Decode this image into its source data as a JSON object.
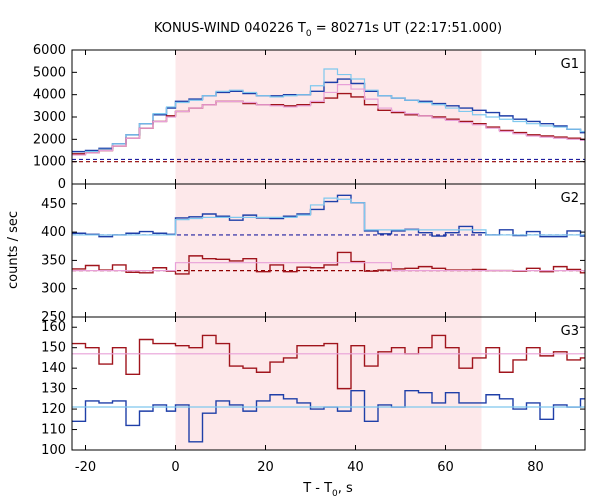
{
  "title_main": "KONUS-WIND 040226 T",
  "title_sub": "0",
  "title_tail": " = 80271s UT (22:17:51.000)",
  "xlabel_main": "T - T",
  "xlabel_sub": "0",
  "xlabel_tail": ", s",
  "ylabel": "counts / sec",
  "colors": {
    "shade": "#fde8ea",
    "dark_blue": "#1f3fa8",
    "light_blue": "#7fc8ee",
    "dark_red": "#a0141c",
    "pink": "#e8a0d8",
    "dash_blue": "#2020a0",
    "dash_red": "#900000"
  },
  "chart_data": {
    "type": "line",
    "x_range": [
      -23,
      91
    ],
    "x_ticks": [
      -20,
      0,
      20,
      40,
      60,
      80
    ],
    "shaded_interval": [
      0,
      68
    ],
    "panels": [
      {
        "label": "G1",
        "ylim": [
          0,
          6000
        ],
        "y_ticks": [
          0,
          1000,
          2000,
          3000,
          4000,
          5000,
          6000
        ],
        "dashed_levels": [
          1100,
          1000
        ],
        "series": [
          {
            "name": "",
            "color": "dark_blue",
            "x": [
              -23,
              -20,
              -17,
              -14,
              -11,
              -8,
              -5,
              -2,
              0,
              3,
              6,
              9,
              12,
              15,
              18,
              21,
              24,
              27,
              30,
              33,
              36,
              39,
              42,
              45,
              48,
              51,
              54,
              57,
              60,
              63,
              66,
              69,
              72,
              75,
              78,
              81,
              84,
              87,
              90
            ],
            "y": [
              1450,
              1500,
              1600,
              1800,
              2200,
              2700,
              3100,
              3400,
              3700,
              3800,
              3950,
              4100,
              4150,
              4050,
              3950,
              3950,
              4000,
              4000,
              4150,
              4550,
              4700,
              4500,
              4150,
              3950,
              3850,
              3750,
              3700,
              3600,
              3500,
              3400,
              3300,
              3200,
              3050,
              2900,
              2800,
              2700,
              2600,
              2450,
              2300
            ]
          },
          {
            "name": "",
            "color": "light_blue",
            "x": [
              -23,
              -20,
              -17,
              -14,
              -11,
              -8,
              -5,
              -2,
              0,
              3,
              6,
              9,
              12,
              15,
              18,
              21,
              24,
              27,
              30,
              33,
              36,
              39,
              42,
              45,
              48,
              51,
              54,
              57,
              60,
              63,
              66,
              69,
              72,
              75,
              78,
              81,
              84,
              87,
              90
            ],
            "y": [
              1350,
              1450,
              1550,
              1800,
              2200,
              2700,
              3150,
              3450,
              3650,
              3750,
              3950,
              4150,
              4200,
              4100,
              3950,
              3900,
              3950,
              4000,
              4400,
              5150,
              4900,
              4700,
              4200,
              3950,
              3850,
              3750,
              3650,
              3550,
              3400,
              3250,
              3100,
              3000,
              2900,
              2800,
              2700,
              2600,
              2550,
              2450,
              2350
            ]
          },
          {
            "name": "",
            "color": "dark_red",
            "x": [
              -23,
              -20,
              -17,
              -14,
              -11,
              -8,
              -5,
              -2,
              0,
              3,
              6,
              9,
              12,
              15,
              18,
              21,
              24,
              27,
              30,
              33,
              36,
              39,
              42,
              45,
              48,
              51,
              54,
              57,
              60,
              63,
              66,
              69,
              72,
              75,
              78,
              81,
              84,
              87,
              90
            ],
            "y": [
              1350,
              1400,
              1500,
              1700,
              2050,
              2500,
              2800,
              3050,
              3250,
              3400,
              3550,
              3700,
              3700,
              3600,
              3550,
              3550,
              3500,
              3550,
              3650,
              3850,
              4050,
              3900,
              3550,
              3300,
              3200,
              3100,
              3050,
              3000,
              2900,
              2800,
              2700,
              2550,
              2400,
              2300,
              2200,
              2150,
              2100,
              2050,
              2000
            ]
          },
          {
            "name": "",
            "color": "pink",
            "x": [
              -23,
              -20,
              -17,
              -14,
              -11,
              -8,
              -5,
              -2,
              0,
              3,
              6,
              9,
              12,
              15,
              18,
              21,
              24,
              27,
              30,
              33,
              36,
              39,
              42,
              45,
              48,
              51,
              54,
              57,
              60,
              63,
              66,
              69,
              72,
              75,
              78,
              81,
              84,
              87,
              90
            ],
            "y": [
              1300,
              1400,
              1500,
              1700,
              2050,
              2500,
              2800,
              3000,
              3250,
              3400,
              3550,
              3700,
              3700,
              3650,
              3550,
              3500,
              3450,
              3500,
              3700,
              4100,
              4450,
              4250,
              3800,
              3400,
              3250,
              3150,
              3050,
              2950,
              2850,
              2750,
              2650,
              2500,
              2350,
              2250,
              2150,
              2100,
              2050,
              2000,
              1950
            ]
          }
        ]
      },
      {
        "label": "G2",
        "ylim": [
          250,
          485
        ],
        "y_ticks": [
          250,
          300,
          350,
          400,
          450
        ],
        "dashed_levels": [
          395,
          332
        ],
        "series": [
          {
            "name": "",
            "color": "dark_blue",
            "x": [
              -23,
              -20,
              -17,
              -14,
              -11,
              -8,
              -5,
              -2,
              0,
              3,
              6,
              9,
              12,
              15,
              18,
              21,
              24,
              27,
              30,
              33,
              36,
              39,
              42,
              45,
              48,
              51,
              54,
              57,
              60,
              63,
              66,
              69,
              72,
              75,
              78,
              81,
              84,
              87,
              90
            ],
            "y": [
              398,
              396,
              392,
              395,
              398,
              401,
              398,
              396,
              425,
              427,
              432,
              428,
              421,
              430,
              425,
              424,
              428,
              432,
              440,
              454,
              465,
              452,
              402,
              397,
              402,
              405,
              399,
              393,
              399,
              410,
              399,
              395,
              404,
              394,
              401,
              392,
              392,
              402,
              393
            ]
          },
          {
            "name": "",
            "color": "light_blue",
            "x": [
              -23,
              -20,
              -17,
              -14,
              -11,
              -8,
              -5,
              -2,
              0,
              3,
              6,
              9,
              12,
              15,
              18,
              21,
              24,
              27,
              30,
              33,
              36,
              39,
              42,
              45,
              48,
              51,
              54,
              57,
              60,
              63,
              66,
              69,
              72,
              75,
              78,
              81,
              84,
              87,
              90
            ],
            "y": [
              395,
              395,
              395,
              395,
              395,
              395,
              395,
              395,
              422,
              424,
              426,
              426,
              426,
              426,
              426,
              426,
              426,
              430,
              448,
              460,
              458,
              452,
              404,
              404,
              404,
              404,
              404,
              404,
              404,
              404,
              404,
              395,
              395,
              395,
              395,
              395,
              395,
              395,
              395
            ]
          },
          {
            "name": "",
            "color": "dark_red",
            "x": [
              -23,
              -20,
              -17,
              -14,
              -11,
              -8,
              -5,
              -2,
              0,
              3,
              6,
              9,
              12,
              15,
              18,
              21,
              24,
              27,
              30,
              33,
              36,
              39,
              42,
              45,
              48,
              51,
              54,
              57,
              60,
              63,
              66,
              69,
              72,
              75,
              78,
              81,
              84,
              87,
              90
            ],
            "y": [
              335,
              341,
              333,
              342,
              329,
              328,
              337,
              331,
              326,
              358,
              353,
              352,
              349,
              353,
              330,
              342,
              330,
              338,
              337,
              342,
              364,
              348,
              331,
              333,
              335,
              336,
              339,
              336,
              333,
              333,
              334,
              332,
              332,
              331,
              336,
              330,
              339,
              334,
              328
            ]
          },
          {
            "name": "",
            "color": "pink",
            "x": [
              -23,
              -20,
              -17,
              -14,
              -11,
              -8,
              -5,
              -2,
              0,
              3,
              6,
              9,
              12,
              15,
              18,
              21,
              24,
              27,
              30,
              33,
              36,
              39,
              42,
              45,
              48,
              51,
              54,
              57,
              60,
              63,
              66,
              69,
              72,
              75,
              78,
              81,
              84,
              87,
              90
            ],
            "y": [
              332,
              332,
              332,
              332,
              332,
              332,
              332,
              332,
              346,
              346,
              346,
              346,
              346,
              346,
              346,
              346,
              346,
              346,
              346,
              346,
              346,
              346,
              346,
              346,
              332,
              332,
              332,
              332,
              332,
              332,
              332,
              332,
              332,
              332,
              332,
              332,
              332,
              332,
              332
            ]
          }
        ]
      },
      {
        "label": "G3",
        "ylim": [
          100,
          165
        ],
        "y_ticks": [
          100,
          110,
          120,
          130,
          140,
          150,
          160
        ],
        "dashed_levels": [],
        "series": [
          {
            "name": "",
            "color": "dark_red",
            "x": [
              -23,
              -20,
              -17,
              -14,
              -11,
              -8,
              -5,
              -2,
              0,
              3,
              6,
              9,
              12,
              15,
              18,
              21,
              24,
              27,
              30,
              33,
              36,
              39,
              42,
              45,
              48,
              51,
              54,
              57,
              60,
              63,
              66,
              69,
              72,
              75,
              78,
              81,
              84,
              87,
              90
            ],
            "y": [
              152,
              150,
              142,
              150,
              137,
              154,
              152,
              152,
              151,
              150,
              156,
              152,
              141,
              140,
              138,
              143,
              145,
              151,
              151,
              152,
              130,
              151,
              141,
              148,
              150,
              147,
              150,
              156,
              150,
              140,
              145,
              150,
              138,
              144,
              150,
              146,
              148,
              144,
              145
            ]
          },
          {
            "name": "",
            "color": "pink",
            "x": [
              -23,
              90
            ],
            "y": [
              147,
              147
            ]
          },
          {
            "name": "",
            "color": "dark_blue",
            "x": [
              -23,
              -20,
              -17,
              -14,
              -11,
              -8,
              -5,
              -2,
              0,
              3,
              6,
              9,
              12,
              15,
              18,
              21,
              24,
              27,
              30,
              33,
              36,
              39,
              42,
              45,
              48,
              51,
              54,
              57,
              60,
              63,
              66,
              69,
              72,
              75,
              78,
              81,
              84,
              87,
              90
            ],
            "y": [
              114,
              124,
              123,
              124,
              112,
              119,
              122,
              119,
              122,
              104,
              118,
              124,
              122,
              119,
              124,
              127,
              125,
              123,
              120,
              121,
              119,
              129,
              114,
              122,
              121,
              129,
              128,
              123,
              128,
              123,
              123,
              127,
              125,
              120,
              123,
              115,
              122,
              121,
              125
            ]
          },
          {
            "name": "",
            "color": "light_blue",
            "x": [
              -23,
              90
            ],
            "y": [
              121,
              121
            ]
          }
        ]
      }
    ]
  }
}
